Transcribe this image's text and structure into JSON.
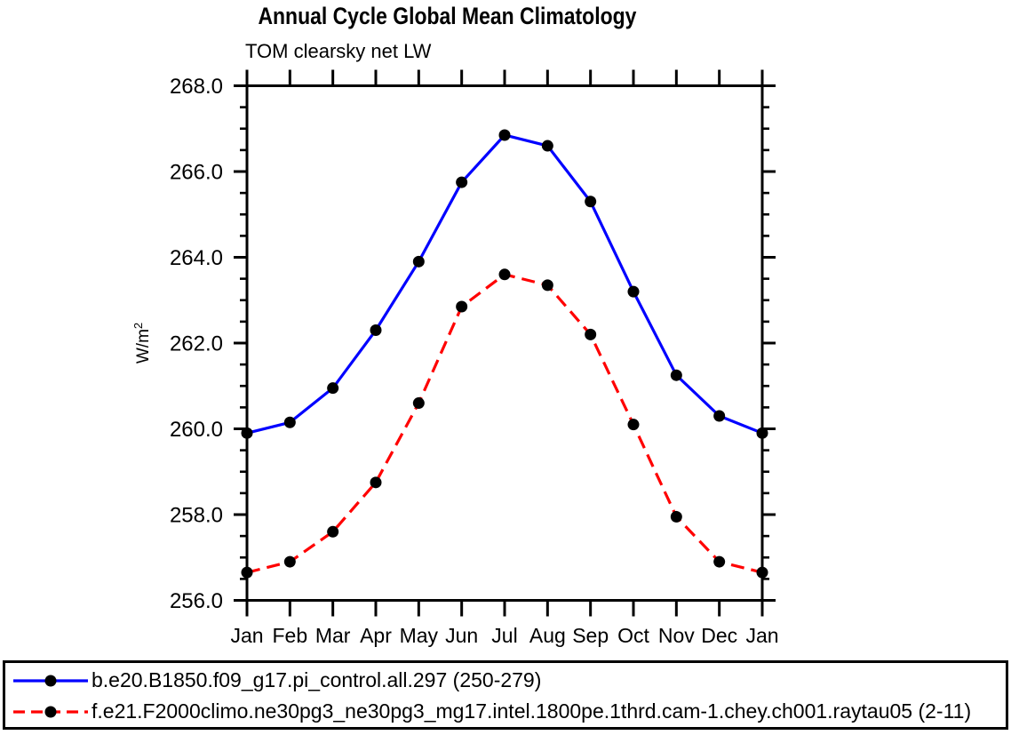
{
  "chart_data": {
    "type": "line",
    "title": "Annual Cycle Global Mean Climatology",
    "subtitle": "TOM clearsky net LW",
    "ylabel": "W/m²",
    "xlabel": "",
    "categories": [
      "Jan",
      "Feb",
      "Mar",
      "Apr",
      "May",
      "Jun",
      "Jul",
      "Aug",
      "Sep",
      "Oct",
      "Nov",
      "Dec",
      "Jan"
    ],
    "series": [
      {
        "name": "b.e20.B1850.f09_g17.pi_control.all.297 (250-279)",
        "color": "#0000ff",
        "line_style": "solid",
        "marker": "filled-circle",
        "marker_color": "#000000",
        "values": [
          259.9,
          260.15,
          260.95,
          262.3,
          263.9,
          265.75,
          266.85,
          266.6,
          265.3,
          263.2,
          261.25,
          260.3,
          259.9
        ]
      },
      {
        "name": "f.e21.F2000climo.ne30pg3_ne30pg3_mg17.intel.1800pe.1thrd.cam-1.chey.ch001.raytau05 (2-11)",
        "color": "#ff0000",
        "line_style": "dashed",
        "marker": "filled-circle",
        "marker_color": "#000000",
        "values": [
          256.65,
          256.9,
          257.6,
          258.75,
          260.6,
          262.85,
          263.6,
          263.35,
          262.2,
          260.1,
          257.95,
          256.9,
          256.65
        ]
      }
    ],
    "ylim": [
      256.0,
      268.0
    ],
    "ytick_interval": 2.0,
    "ytick_minor_interval": 0.5,
    "ytick_labels": [
      "256.0",
      "258.0",
      "260.0",
      "262.0",
      "264.0",
      "266.0",
      "268.0"
    ],
    "grid": "off",
    "legend_position": "bottom-box",
    "axis_color": "#000000"
  }
}
